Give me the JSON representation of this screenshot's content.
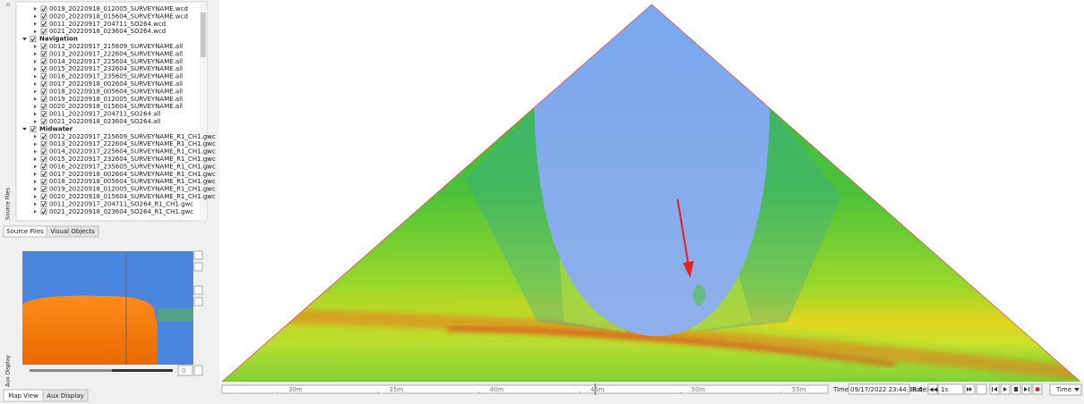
{
  "tree": {
    "partial_items": [
      "0019_20220918_012005_SURVEYNAME.wcd",
      "0020_20220918_015604_SURVEYNAME.wcd",
      "0011_20220917_204711_SO264.wcd",
      "0021_20220918_023604_SO264.wcd"
    ],
    "groups": [
      {
        "label": "Navigation",
        "items": [
          "0012_20220917_215609_SURVEYNAME.all",
          "0013_20220917_222604_SURVEYNAME.all",
          "0014_20220917_225604_SURVEYNAME.all",
          "0015_20220917_232604_SURVEYNAME.all",
          "0016_20220917_235605_SURVEYNAME.all",
          "0017_20220918_002604_SURVEYNAME.all",
          "0018_20220918_005604_SURVEYNAME.all",
          "0019_20220918_012005_SURVEYNAME.all",
          "0020_20220918_015604_SURVEYNAME.all",
          "0011_20220917_204711_SO264.all",
          "0021_20220918_023604_SO264.all"
        ]
      },
      {
        "label": "Midwater",
        "items": [
          "0012_20220917_215609_SURVEYNAME_R1_CH1.gwc",
          "0013_20220917_222604_SURVEYNAME_R1_CH1.gwc",
          "0014_20220917_225604_SURVEYNAME_R1_CH1.gwc",
          "0015_20220917_232604_SURVEYNAME_R1_CH1.gwc",
          "0016_20220917_235605_SURVEYNAME_R1_CH1.gwc",
          "0017_20220918_002604_SURVEYNAME_R1_CH1.gwc",
          "0018_20220918_005604_SURVEYNAME_R1_CH1.gwc",
          "0019_20220918_012005_SURVEYNAME_R1_CH1.gwc",
          "0020_20220918_015604_SURVEYNAME_R1_CH1.gwc",
          "0011_20220917_204711_SO264_R1_CH1.gwc",
          "0021_20220918_023604_SO264_R1_CH1.gwc"
        ]
      }
    ]
  },
  "side_labels": {
    "source": "Source Files",
    "aux": "Aux Display"
  },
  "left_tabs": [
    "Source Files",
    "Visual Objects"
  ],
  "aux_tabs": [
    "Map View",
    "Aux Display"
  ],
  "aux_slider_value": "0",
  "scale_labels": [
    "30m",
    "35m",
    "40m",
    "45m",
    "50m",
    "55m"
  ],
  "playback": {
    "time_label": "Time:",
    "time": "09/17/2022 23:44:38.6",
    "rate_label": "Rate:",
    "rate": "1s",
    "mode": "Time"
  }
}
